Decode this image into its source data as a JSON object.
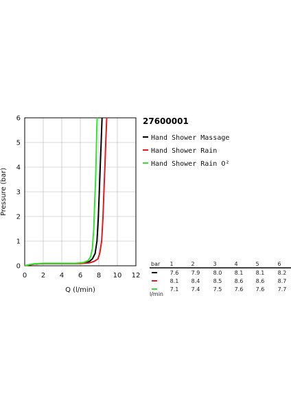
{
  "product_code": "27600001",
  "colors": {
    "massage": "#000000",
    "rain": "#e0191c",
    "rain_o2": "#2ee62e"
  },
  "chart_data": {
    "type": "line",
    "xlabel": "Q (l/min)",
    "ylabel": "Pressure (bar)",
    "xlim": [
      0,
      12
    ],
    "ylim": [
      0,
      6
    ],
    "xticks": [
      "0",
      "2",
      "4",
      "6",
      "8",
      "10",
      "12"
    ],
    "yticks": [
      "0",
      "1",
      "2",
      "3",
      "4",
      "5",
      "6"
    ],
    "grid": true,
    "legend_position": "right",
    "series": [
      {
        "name": "Hand Shower Massage",
        "color": "#000000",
        "points": [
          [
            0,
            0
          ],
          [
            0.5,
            0.04
          ],
          [
            1,
            0.07
          ],
          [
            2,
            0.09
          ],
          [
            4,
            0.09
          ],
          [
            5.5,
            0.09
          ],
          [
            6.5,
            0.12
          ],
          [
            7.0,
            0.18
          ],
          [
            7.3,
            0.28
          ],
          [
            7.6,
            0.5
          ],
          [
            7.8,
            1.0
          ],
          [
            7.95,
            2.0
          ],
          [
            8.05,
            3.0
          ],
          [
            8.15,
            4.0
          ],
          [
            8.25,
            5.0
          ],
          [
            8.35,
            6.0
          ]
        ]
      },
      {
        "name": "Hand Shower Rain",
        "color": "#e0191c",
        "points": [
          [
            0,
            0
          ],
          [
            0.5,
            0.04
          ],
          [
            1,
            0.07
          ],
          [
            2,
            0.09
          ],
          [
            4,
            0.09
          ],
          [
            6,
            0.09
          ],
          [
            7.0,
            0.12
          ],
          [
            7.5,
            0.18
          ],
          [
            7.9,
            0.28
          ],
          [
            8.1,
            0.5
          ],
          [
            8.3,
            1.0
          ],
          [
            8.45,
            2.0
          ],
          [
            8.55,
            3.0
          ],
          [
            8.65,
            4.0
          ],
          [
            8.75,
            5.0
          ],
          [
            8.85,
            6.0
          ]
        ]
      },
      {
        "name": "Hand Shower Rain O²",
        "color": "#2ee62e",
        "points": [
          [
            0,
            0
          ],
          [
            0.5,
            0.05
          ],
          [
            1,
            0.08
          ],
          [
            2,
            0.1
          ],
          [
            4,
            0.1
          ],
          [
            5.5,
            0.1
          ],
          [
            6.3,
            0.13
          ],
          [
            6.8,
            0.2
          ],
          [
            7.1,
            0.35
          ],
          [
            7.3,
            0.7
          ],
          [
            7.45,
            1.5
          ],
          [
            7.55,
            2.5
          ],
          [
            7.65,
            3.5
          ],
          [
            7.72,
            4.5
          ],
          [
            7.78,
            5.5
          ],
          [
            7.82,
            6.0
          ]
        ]
      }
    ]
  },
  "legend": {
    "items": [
      {
        "label": "Hand Shower Massage",
        "color": "#000000"
      },
      {
        "label": "Hand Shower Rain",
        "color": "#e0191c"
      },
      {
        "label": "Hand Shower Rain O²",
        "color": "#2ee62e"
      }
    ]
  },
  "flow_table": {
    "header_label": "bar",
    "columns": [
      "1",
      "2",
      "3",
      "4",
      "5",
      "6"
    ],
    "unit_label": "l/min",
    "rows": [
      {
        "color": "#000000",
        "values": [
          "7.6",
          "7.9",
          "8.0",
          "8.1",
          "8.1",
          "8.2"
        ]
      },
      {
        "color": "#e0191c",
        "values": [
          "8.1",
          "8.4",
          "8.5",
          "8.6",
          "8.6",
          "8.7"
        ]
      },
      {
        "color": "#2ee62e",
        "values": [
          "7.1",
          "7.4",
          "7.5",
          "7.6",
          "7.6",
          "7.7"
        ]
      }
    ]
  }
}
